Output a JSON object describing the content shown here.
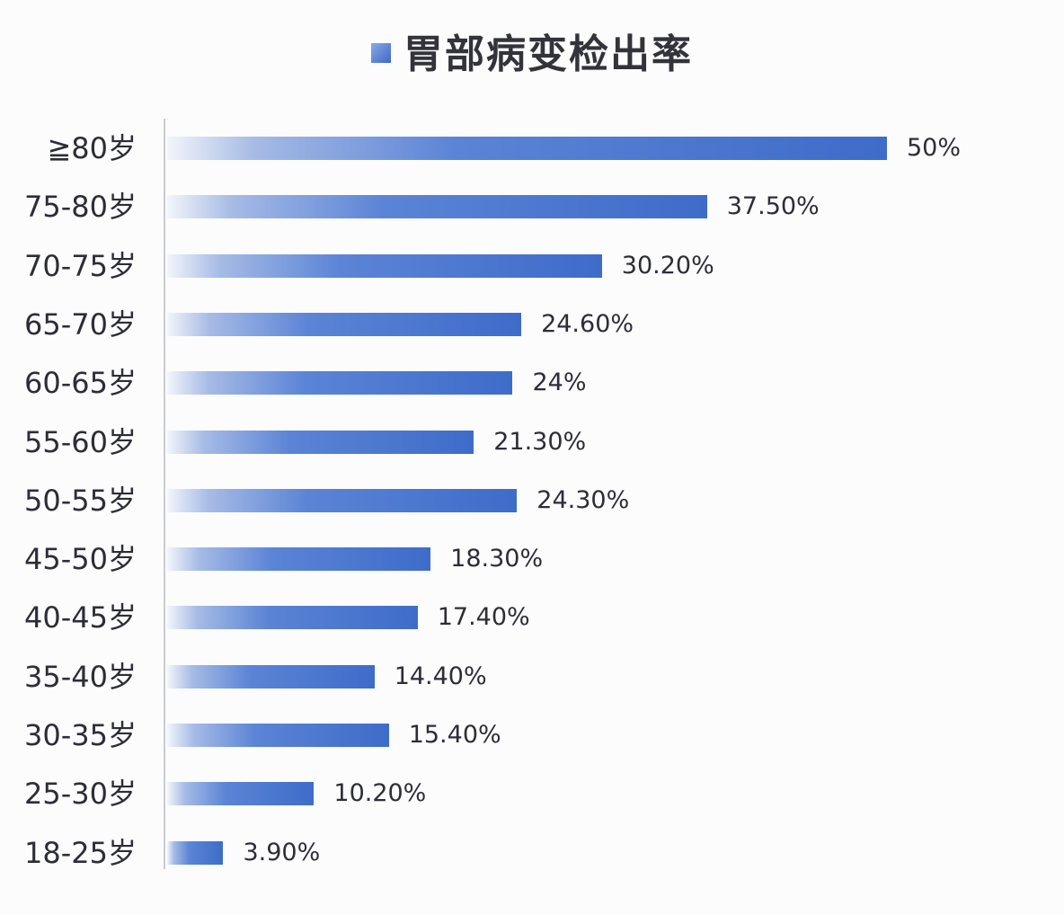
{
  "title": "胃部病变检出率",
  "chart_data": {
    "type": "bar",
    "orientation": "horizontal",
    "title": "胃部病变检出率",
    "xlabel": "",
    "ylabel": "",
    "categories": [
      "≧80岁",
      "75-80岁",
      "70-75岁",
      "65-70岁",
      "60-65岁",
      "55-60岁",
      "50-55岁",
      "45-50岁",
      "40-45岁",
      "35-40岁",
      "30-35岁",
      "25-30岁",
      "18-25岁"
    ],
    "values": [
      50,
      37.5,
      30.2,
      24.6,
      24,
      21.3,
      24.3,
      18.3,
      17.4,
      14.4,
      15.4,
      10.2,
      3.9
    ],
    "value_labels": [
      "50%",
      "37.50%",
      "30.20%",
      "24.60%",
      "24%",
      "21.30%",
      "24.30%",
      "18.30%",
      "17.40%",
      "14.40%",
      "15.40%",
      "10.20%",
      "3.90%"
    ],
    "xlim": [
      0,
      50
    ],
    "grid": false,
    "legend": null,
    "bar_color": "#3e6cc9"
  }
}
